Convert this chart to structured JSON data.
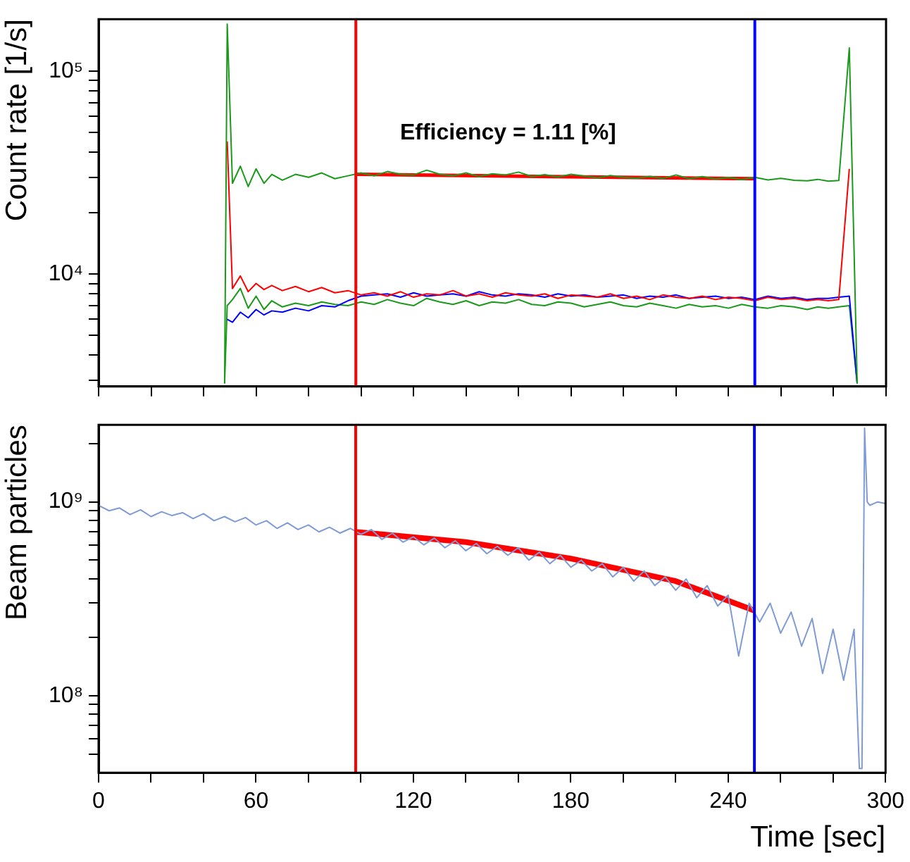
{
  "chart_data": [
    {
      "type": "line",
      "ylabel": "Count rate [1/s]",
      "log": "y",
      "marker": "none",
      "tick_labels": "y",
      "annotations": [
        "Efficiency = 1.11 [%]"
      ],
      "xlim": [
        0,
        300
      ],
      "xticks": [
        {
          "value": 0,
          "label": null
        },
        {
          "value": 20,
          "label": null
        },
        {
          "value": 40,
          "label": null
        },
        {
          "value": 60,
          "label": null
        },
        {
          "value": 80,
          "label": null
        },
        {
          "value": 100,
          "label": null
        },
        {
          "value": 120,
          "label": null
        },
        {
          "value": 140,
          "label": null
        },
        {
          "value": 160,
          "label": null
        },
        {
          "value": 180,
          "label": null
        },
        {
          "value": 200,
          "label": null
        },
        {
          "value": 220,
          "label": null
        },
        {
          "value": 240,
          "label": null
        },
        {
          "value": 260,
          "label": null
        },
        {
          "value": 280,
          "label": null
        },
        {
          "value": 300,
          "label": null
        }
      ],
      "ylim": [
        2800,
        180000
      ],
      "yticks": [
        {
          "value": 3000,
          "label": null
        },
        {
          "value": 4000,
          "label": null
        },
        {
          "value": 5000,
          "label": null
        },
        {
          "value": 6000,
          "label": null
        },
        {
          "value": 7000,
          "label": null
        },
        {
          "value": 8000,
          "label": null
        },
        {
          "value": 9000,
          "label": null
        },
        {
          "value": 10000,
          "label": "10⁴"
        },
        {
          "value": 20000,
          "label": null
        },
        {
          "value": 30000,
          "label": null
        },
        {
          "value": 40000,
          "label": null
        },
        {
          "value": 50000,
          "label": null
        },
        {
          "value": 60000,
          "label": null
        },
        {
          "value": 70000,
          "label": null
        },
        {
          "value": 80000,
          "label": null
        },
        {
          "value": 90000,
          "label": null
        },
        {
          "value": 100000,
          "label": "10⁵"
        }
      ],
      "x": [
        48,
        49,
        51,
        54,
        57,
        60,
        63,
        66,
        70,
        75,
        80,
        85,
        90,
        95,
        100,
        105,
        110,
        115,
        120,
        125,
        130,
        135,
        140,
        145,
        150,
        155,
        160,
        165,
        170,
        175,
        180,
        185,
        190,
        195,
        200,
        205,
        210,
        215,
        220,
        225,
        230,
        235,
        240,
        245,
        250,
        255,
        260,
        265,
        270,
        274,
        278,
        282,
        286,
        289
      ],
      "series": [
        {
          "color": "#1a9a1a",
          "values": [
            2900,
            170000,
            28000,
            34000,
            27000,
            33000,
            28000,
            31000,
            29000,
            31000,
            30000,
            31500,
            29500,
            30500,
            31500,
            30500,
            32000,
            31000,
            30800,
            32500,
            31000,
            30500,
            31500,
            30200,
            31200,
            30800,
            31800,
            30300,
            30900,
            30100,
            31000,
            30400,
            29800,
            30600,
            30000,
            29700,
            30300,
            29600,
            30800,
            29500,
            30200,
            29400,
            29900,
            29200,
            30000,
            29100,
            29600,
            29000,
            28800,
            29300,
            28700,
            28900,
            130000,
            2900
          ]
        },
        {
          "color": "#ff0000",
          "values": [
            null,
            45000,
            8500,
            9800,
            8200,
            9000,
            8400,
            8800,
            8300,
            8700,
            8200,
            8600,
            8100,
            8300,
            7900,
            8100,
            7800,
            8200,
            7700,
            8000,
            7900,
            8300,
            7800,
            8000,
            7700,
            8100,
            7900,
            7800,
            8000,
            7600,
            7900,
            7800,
            7700,
            8000,
            7600,
            7800,
            7500,
            7900,
            7700,
            7600,
            7800,
            7500,
            7700,
            7600,
            7400,
            7700,
            7500,
            7600,
            7400,
            7500,
            7400,
            7500,
            33000,
            null
          ]
        },
        {
          "color": "#0000ff",
          "values": [
            null,
            6000,
            5800,
            6500,
            6100,
            6700,
            6300,
            6600,
            6500,
            6800,
            6600,
            7000,
            6900,
            7400,
            7800,
            7900,
            8000,
            7700,
            8100,
            7800,
            7900,
            8000,
            7800,
            8200,
            7900,
            7800,
            8000,
            7900,
            7700,
            8000,
            7800,
            7900,
            7700,
            7800,
            7900,
            7600,
            7800,
            7700,
            7900,
            7600,
            7700,
            7800,
            7600,
            7700,
            7500,
            7800,
            7600,
            7700,
            7500,
            7600,
            7600,
            7700,
            7800,
            2900
          ]
        },
        {
          "color": "#1a9a1a",
          "values": [
            2900,
            7000,
            7500,
            8500,
            6800,
            7800,
            6700,
            7400,
            6900,
            7200,
            7000,
            7300,
            7100,
            7000,
            7300,
            7100,
            7500,
            7200,
            7000,
            7600,
            7300,
            7100,
            7400,
            7000,
            7300,
            7200,
            7500,
            7100,
            7000,
            7300,
            7200,
            6900,
            7100,
            7300,
            7000,
            6900,
            7200,
            7000,
            6800,
            7100,
            6900,
            7000,
            6800,
            7100,
            6900,
            6800,
            7000,
            6900,
            6700,
            6900,
            6800,
            6900,
            7000,
            2900
          ]
        },
        {
          "color": "#ff0000",
          "x": [
            98,
            250
          ],
          "values": [
            31000,
            29500
          ]
        }
      ],
      "ref_lines": [
        {
          "axis": "x",
          "value": 98,
          "color": "#ff0000"
        },
        {
          "axis": "x",
          "value": 250,
          "color": "#0000ff"
        }
      ]
    },
    {
      "type": "line",
      "xlabel": "Time [sec]",
      "ylabel": "Beam particles",
      "log": "y",
      "marker": "none",
      "xlim": [
        0,
        300
      ],
      "xticks": [
        0,
        {
          "value": 20,
          "label": null
        },
        {
          "value": 40,
          "label": null
        },
        60,
        {
          "value": 80,
          "label": null
        },
        {
          "value": 100,
          "label": null
        },
        120,
        {
          "value": 140,
          "label": null
        },
        {
          "value": 160,
          "label": null
        },
        180,
        {
          "value": 200,
          "label": null
        },
        {
          "value": 220,
          "label": null
        },
        240,
        {
          "value": 260,
          "label": null
        },
        {
          "value": 280,
          "label": null
        },
        300
      ],
      "ylim": [
        40000000,
        2500000000
      ],
      "yticks": [
        {
          "value": 50000000,
          "label": null
        },
        {
          "value": 60000000,
          "label": null
        },
        {
          "value": 70000000,
          "label": null
        },
        {
          "value": 80000000,
          "label": null
        },
        {
          "value": 90000000,
          "label": null
        },
        {
          "value": 100000000,
          "label": "10⁸"
        },
        {
          "value": 200000000,
          "label": null
        },
        {
          "value": 300000000,
          "label": null
        },
        {
          "value": 400000000,
          "label": null
        },
        {
          "value": 500000000,
          "label": null
        },
        {
          "value": 600000000,
          "label": null
        },
        {
          "value": 700000000,
          "label": null
        },
        {
          "value": 800000000,
          "label": null
        },
        {
          "value": 900000000,
          "label": null
        },
        {
          "value": 1000000000,
          "label": "10⁹"
        },
        {
          "value": 2000000000,
          "label": null
        }
      ],
      "x": [
        0,
        4,
        8,
        12,
        16,
        20,
        24,
        28,
        32,
        36,
        40,
        44,
        48,
        52,
        56,
        60,
        64,
        68,
        72,
        76,
        80,
        84,
        88,
        92,
        96,
        100,
        104,
        108,
        112,
        116,
        120,
        124,
        128,
        132,
        136,
        140,
        144,
        148,
        152,
        156,
        160,
        164,
        168,
        172,
        176,
        180,
        184,
        188,
        192,
        196,
        200,
        204,
        208,
        212,
        216,
        220,
        224,
        228,
        232,
        236,
        240,
        244,
        248,
        252,
        256,
        260,
        264,
        268,
        272,
        276,
        280,
        284,
        288,
        290,
        291,
        292,
        293,
        294,
        297,
        300
      ],
      "series": [
        {
          "color": "#7f9bd6",
          "values": [
            960000000,
            900000000,
            930000000,
            860000000,
            910000000,
            840000000,
            890000000,
            850000000,
            880000000,
            820000000,
            870000000,
            800000000,
            840000000,
            790000000,
            830000000,
            760000000,
            800000000,
            730000000,
            780000000,
            720000000,
            760000000,
            700000000,
            740000000,
            690000000,
            730000000,
            680000000,
            720000000,
            640000000,
            690000000,
            620000000,
            660000000,
            600000000,
            650000000,
            580000000,
            630000000,
            560000000,
            610000000,
            540000000,
            590000000,
            530000000,
            580000000,
            500000000,
            550000000,
            480000000,
            530000000,
            460000000,
            500000000,
            440000000,
            480000000,
            410000000,
            460000000,
            390000000,
            440000000,
            370000000,
            410000000,
            350000000,
            400000000,
            320000000,
            370000000,
            290000000,
            330000000,
            160000000,
            300000000,
            240000000,
            300000000,
            210000000,
            270000000,
            180000000,
            250000000,
            130000000,
            220000000,
            120000000,
            220000000,
            42000000,
            42000000,
            2400000000,
            1000000000,
            960000000,
            1000000000,
            980000000
          ]
        },
        {
          "color": "#ff0000",
          "x": [
            98,
            140,
            180,
            220,
            250
          ],
          "values": [
            700000000,
            620000000,
            510000000,
            390000000,
            275000000
          ]
        }
      ],
      "ref_lines": [
        {
          "axis": "x",
          "value": 98,
          "color": "#ff0000"
        },
        {
          "axis": "x",
          "value": 250,
          "color": "#0000ff"
        }
      ]
    }
  ]
}
